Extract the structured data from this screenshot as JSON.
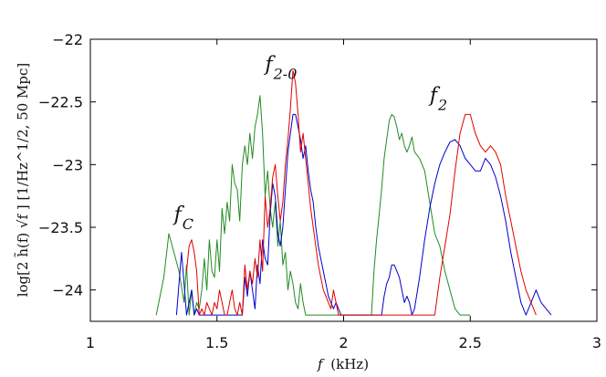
{
  "chart_data": {
    "type": "line",
    "title": "",
    "xlabel_var": "f",
    "xlabel_unit": "(kHz)",
    "ylabel": "log[2 h̃(f) √f ]  [1/Hz^1/2, 50 Mpc]",
    "xlim": [
      1.0,
      3.0
    ],
    "ylim": [
      -24.2,
      -22.0
    ],
    "xticks": [
      1,
      1.5,
      2,
      2.5,
      3
    ],
    "xtick_labels": [
      "1",
      "1.5",
      "2",
      "2.5",
      "3"
    ],
    "yticks": [
      -22,
      -22.5,
      -23,
      -23.5,
      -24
    ],
    "ytick_labels": [
      "−22",
      "−22.5",
      "−23",
      "−23.5",
      "−24"
    ],
    "grid": false,
    "legend": "none",
    "annotations": [
      {
        "main": "f",
        "sub": "C",
        "x": 1.33,
        "y": -23.45
      },
      {
        "main": "f",
        "sub": "2-0",
        "x": 1.69,
        "y": -22.25
      },
      {
        "main": "f",
        "sub": "2",
        "x": 2.34,
        "y": -22.5
      }
    ],
    "series": [
      {
        "color": "#228b22",
        "x": [
          1.26,
          1.29,
          1.31,
          1.33,
          1.35,
          1.37,
          1.38,
          1.39,
          1.4,
          1.41,
          1.42,
          1.43,
          1.44,
          1.45,
          1.46,
          1.47,
          1.48,
          1.49,
          1.5,
          1.51,
          1.52,
          1.53,
          1.54,
          1.55,
          1.56,
          1.57,
          1.58,
          1.59,
          1.6,
          1.61,
          1.62,
          1.63,
          1.64,
          1.65,
          1.66,
          1.67,
          1.68,
          1.69,
          1.7,
          1.71,
          1.72,
          1.73,
          1.74,
          1.75,
          1.76,
          1.77,
          1.78,
          1.79,
          1.8,
          1.81,
          1.82,
          1.83,
          1.84,
          1.85,
          1.86,
          2.11,
          2.12,
          2.13,
          2.14,
          2.15,
          2.16,
          2.17,
          2.18,
          2.19,
          2.2,
          2.21,
          2.22,
          2.23,
          2.24,
          2.25,
          2.26,
          2.27,
          2.28,
          2.3,
          2.32,
          2.34,
          2.36,
          2.38,
          2.4,
          2.42,
          2.44,
          2.46,
          2.48,
          2.49,
          2.5
        ],
        "y": [
          -24.2,
          -23.9,
          -23.55,
          -23.7,
          -23.85,
          -24.1,
          -23.8,
          -24.2,
          -24.0,
          -24.2,
          -24.1,
          -24.15,
          -24.0,
          -23.75,
          -24.0,
          -23.6,
          -23.85,
          -23.9,
          -23.6,
          -23.85,
          -23.35,
          -23.55,
          -23.3,
          -23.45,
          -23.0,
          -23.15,
          -23.2,
          -23.45,
          -23.0,
          -22.85,
          -23.0,
          -22.75,
          -22.95,
          -22.7,
          -22.6,
          -22.45,
          -22.75,
          -23.25,
          -23.05,
          -23.35,
          -23.5,
          -23.3,
          -23.65,
          -23.45,
          -23.8,
          -23.7,
          -24.0,
          -23.85,
          -23.95,
          -24.1,
          -24.15,
          -23.95,
          -24.1,
          -24.2,
          -24.2,
          -24.2,
          -23.85,
          -23.6,
          -23.4,
          -23.2,
          -22.95,
          -22.8,
          -22.65,
          -22.6,
          -22.62,
          -22.7,
          -22.8,
          -22.75,
          -22.85,
          -22.9,
          -22.85,
          -22.78,
          -22.9,
          -22.95,
          -23.05,
          -23.3,
          -23.55,
          -23.65,
          -23.85,
          -24.0,
          -24.15,
          -24.2,
          -24.2,
          -24.2,
          -24.2
        ]
      },
      {
        "color": "#0000cc",
        "x": [
          1.34,
          1.35,
          1.36,
          1.37,
          1.38,
          1.39,
          1.4,
          1.41,
          1.42,
          1.43,
          1.6,
          1.61,
          1.62,
          1.63,
          1.64,
          1.65,
          1.66,
          1.67,
          1.68,
          1.69,
          1.7,
          1.71,
          1.72,
          1.73,
          1.74,
          1.75,
          1.76,
          1.77,
          1.78,
          1.79,
          1.8,
          1.81,
          1.82,
          1.83,
          1.84,
          1.85,
          1.86,
          1.87,
          1.88,
          1.89,
          1.9,
          1.91,
          1.92,
          1.93,
          1.94,
          1.95,
          1.96,
          1.97,
          1.98,
          1.99,
          2.0,
          2.15,
          2.16,
          2.17,
          2.18,
          2.19,
          2.2,
          2.21,
          2.22,
          2.23,
          2.24,
          2.25,
          2.26,
          2.27,
          2.28,
          2.3,
          2.32,
          2.34,
          2.36,
          2.38,
          2.4,
          2.42,
          2.44,
          2.46,
          2.48,
          2.5,
          2.52,
          2.54,
          2.56,
          2.58,
          2.6,
          2.62,
          2.64,
          2.66,
          2.68,
          2.7,
          2.72,
          2.74,
          2.76,
          2.78,
          2.8,
          2.82
        ],
        "y": [
          -24.2,
          -23.95,
          -23.7,
          -23.95,
          -24.2,
          -24.1,
          -24.0,
          -24.2,
          -24.15,
          -24.2,
          -24.2,
          -23.9,
          -24.05,
          -23.85,
          -24.0,
          -24.15,
          -23.8,
          -23.95,
          -23.6,
          -23.75,
          -23.8,
          -23.4,
          -23.15,
          -23.25,
          -23.55,
          -23.65,
          -23.5,
          -23.2,
          -22.9,
          -22.75,
          -22.6,
          -22.6,
          -22.7,
          -22.8,
          -22.95,
          -22.85,
          -23.05,
          -23.2,
          -23.3,
          -23.5,
          -23.65,
          -23.75,
          -23.85,
          -23.95,
          -24.05,
          -24.1,
          -24.15,
          -24.1,
          -24.15,
          -24.2,
          -24.2,
          -24.2,
          -24.05,
          -23.95,
          -23.9,
          -23.8,
          -23.8,
          -23.85,
          -23.9,
          -24.0,
          -24.1,
          -24.05,
          -24.1,
          -24.2,
          -24.15,
          -23.9,
          -23.6,
          -23.35,
          -23.15,
          -23.0,
          -22.9,
          -22.82,
          -22.8,
          -22.85,
          -22.95,
          -23.0,
          -23.05,
          -23.05,
          -22.95,
          -23.0,
          -23.1,
          -23.25,
          -23.45,
          -23.7,
          -23.9,
          -24.1,
          -24.2,
          -24.1,
          -24.0,
          -24.1,
          -24.15,
          -24.2
        ]
      },
      {
        "color": "#e00000",
        "x": [
          1.38,
          1.39,
          1.4,
          1.41,
          1.42,
          1.43,
          1.44,
          1.45,
          1.46,
          1.47,
          1.48,
          1.49,
          1.5,
          1.51,
          1.52,
          1.53,
          1.54,
          1.55,
          1.56,
          1.57,
          1.58,
          1.59,
          1.6,
          1.61,
          1.62,
          1.63,
          1.64,
          1.65,
          1.66,
          1.67,
          1.68,
          1.69,
          1.7,
          1.71,
          1.72,
          1.73,
          1.74,
          1.75,
          1.76,
          1.77,
          1.78,
          1.79,
          1.8,
          1.81,
          1.82,
          1.83,
          1.84,
          1.85,
          1.86,
          1.87,
          1.88,
          1.89,
          1.9,
          1.91,
          1.92,
          1.93,
          1.94,
          1.95,
          1.96,
          1.97,
          1.98,
          1.99,
          2.36,
          2.38,
          2.4,
          2.42,
          2.44,
          2.46,
          2.48,
          2.5,
          2.52,
          2.54,
          2.56,
          2.58,
          2.6,
          2.62,
          2.64,
          2.66,
          2.68,
          2.7,
          2.72,
          2.74,
          2.76
        ],
        "y": [
          -23.85,
          -23.65,
          -23.6,
          -23.7,
          -23.85,
          -24.2,
          -24.15,
          -24.2,
          -24.1,
          -24.15,
          -24.2,
          -24.1,
          -24.15,
          -24.0,
          -24.1,
          -24.2,
          -24.2,
          -24.1,
          -24.0,
          -24.15,
          -24.2,
          -24.1,
          -24.2,
          -23.8,
          -24.0,
          -23.85,
          -23.95,
          -23.75,
          -23.9,
          -23.6,
          -23.85,
          -23.25,
          -23.5,
          -23.35,
          -23.1,
          -23.0,
          -23.25,
          -23.45,
          -23.3,
          -23.0,
          -22.8,
          -22.55,
          -22.25,
          -22.35,
          -22.6,
          -22.9,
          -22.75,
          -22.95,
          -23.15,
          -23.35,
          -23.5,
          -23.65,
          -23.8,
          -23.9,
          -24.0,
          -24.05,
          -24.1,
          -24.15,
          -24.0,
          -24.1,
          -24.2,
          -24.2,
          -24.2,
          -23.9,
          -23.65,
          -23.4,
          -23.05,
          -22.75,
          -22.6,
          -22.6,
          -22.75,
          -22.85,
          -22.9,
          -22.85,
          -22.9,
          -23.0,
          -23.25,
          -23.45,
          -23.65,
          -23.85,
          -24.0,
          -24.1,
          -24.2
        ]
      }
    ]
  }
}
